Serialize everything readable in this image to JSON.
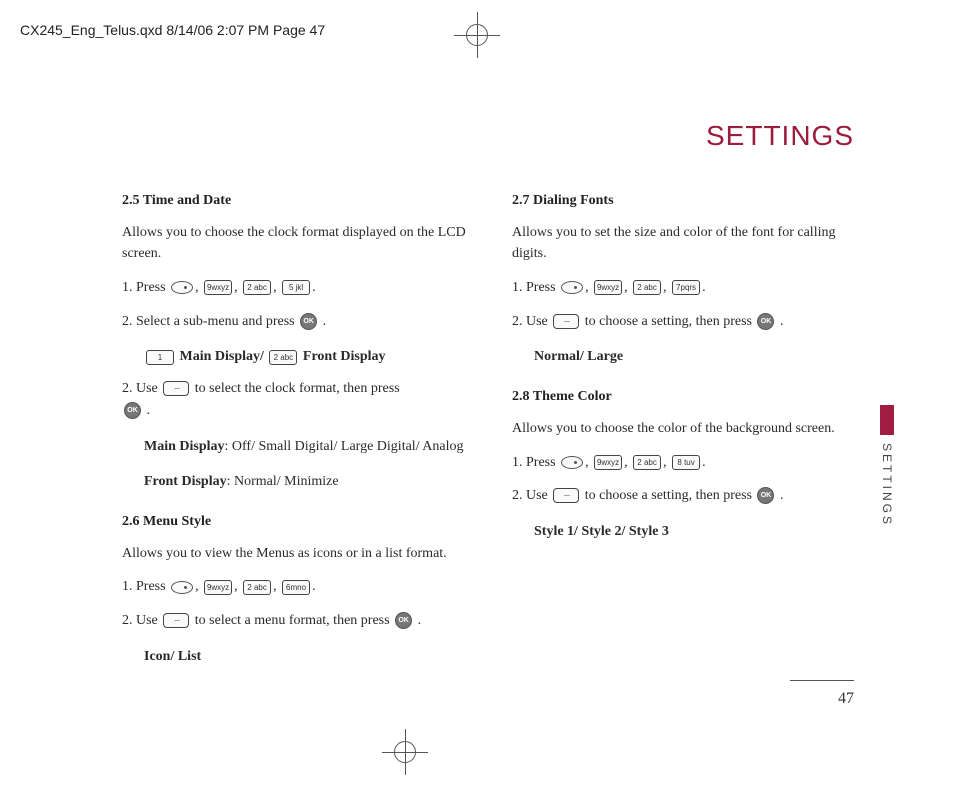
{
  "header": "CX245_Eng_Telus.qxd  8/14/06  2:07 PM  Page 47",
  "page_title": "SETTINGS",
  "side_tab_text": "SETTINGS",
  "page_number": "47",
  "keys": {
    "menu": "",
    "9": "9wxyz",
    "2": "2 abc",
    "5": "5 jkl",
    "6": "6mno",
    "7": "7pqrs",
    "8": "8 tuv",
    "1": "1",
    "ok": "OK"
  },
  "left_column": {
    "s1_heading": "2.5 Time and Date",
    "s1_intro": "Allows you to choose the clock format displayed on the LCD screen.",
    "s1_step1_a": "1. Press ",
    "s1_step1_comma": ", ",
    "s1_step1_end": ".",
    "s1_step2_a": "2. Select a sub-menu and press ",
    "s1_step2_end": " .",
    "s1_sub_main": " Main Display/ ",
    "s1_sub_front": " Front Display",
    "s1_step3_a": "2. Use ",
    "s1_step3_b": " to select the clock format, then press ",
    "s1_step3_end": " .",
    "s1_main_label": "Main Display",
    "s1_main_values": ": Off/ Small Digital/ Large Digital/ Analog",
    "s1_front_label": "Front Display",
    "s1_front_values": ": Normal/ Minimize",
    "s2_heading": "2.6 Menu Style",
    "s2_intro": "Allows you to view the Menus as icons or in a list format.",
    "s2_step1_a": "1. Press ",
    "s2_step2_a": "2. Use ",
    "s2_step2_b": " to select a menu format, then press ",
    "s2_step2_end": " .",
    "s2_values": "Icon/ List"
  },
  "right_column": {
    "s3_heading": "2.7 Dialing Fonts",
    "s3_intro": "Allows you to set the size and color of the font for calling digits.",
    "s3_step1_a": "1. Press ",
    "s3_step2_a": "2. Use ",
    "s3_step2_b": " to choose a setting, then press ",
    "s3_step2_end": " .",
    "s3_values": "Normal/ Large",
    "s4_heading": "2.8 Theme Color",
    "s4_intro": "Allows you to choose the color of the background screen.",
    "s4_step1_a": "1. Press ",
    "s4_step2_a": "2. Use ",
    "s4_step2_b": " to choose a setting, then press ",
    "s4_step2_end": " .",
    "s4_values": "Style 1/ Style 2/ Style 3"
  }
}
